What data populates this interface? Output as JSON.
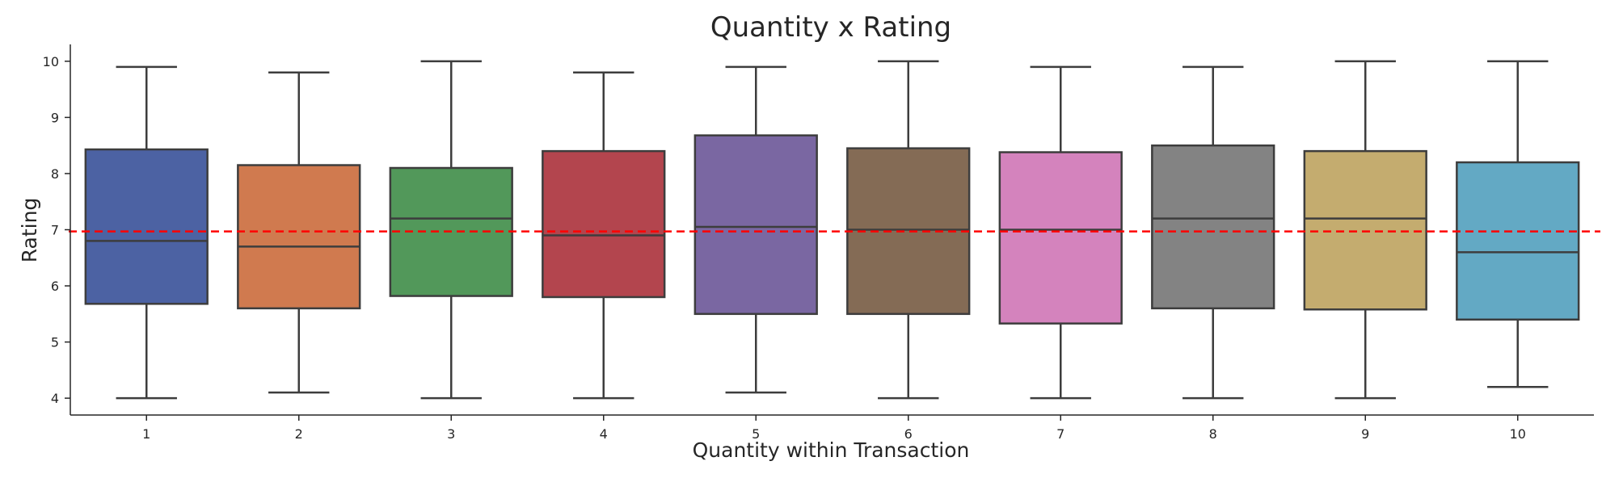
{
  "chart_data": {
    "type": "box",
    "title": "Quantity x Rating",
    "xlabel": "Quantity within Transaction",
    "ylabel": "Rating",
    "ylim": [
      3.7,
      10.3
    ],
    "yticks": [
      "4",
      "5",
      "6",
      "7",
      "8",
      "9",
      "10"
    ],
    "grid": false,
    "reference_line": {
      "y": 6.97,
      "color": "#ff0000",
      "style": "dashed"
    },
    "categories": [
      "1",
      "2",
      "3",
      "4",
      "5",
      "6",
      "7",
      "8",
      "9",
      "10"
    ],
    "boxes": [
      {
        "category": "1",
        "min": 4.0,
        "q1": 5.68,
        "median": 6.8,
        "q3": 8.43,
        "max": 9.9,
        "color": "#4c62a3"
      },
      {
        "category": "2",
        "min": 4.1,
        "q1": 5.6,
        "median": 6.7,
        "q3": 8.15,
        "max": 9.8,
        "color": "#d07a4f"
      },
      {
        "category": "3",
        "min": 4.0,
        "q1": 5.82,
        "median": 7.2,
        "q3": 8.1,
        "max": 10.0,
        "color": "#52985a"
      },
      {
        "category": "4",
        "min": 4.0,
        "q1": 5.8,
        "median": 6.9,
        "q3": 8.4,
        "max": 9.8,
        "color": "#b3454e"
      },
      {
        "category": "5",
        "min": 4.1,
        "q1": 5.5,
        "median": 7.05,
        "q3": 8.68,
        "max": 9.9,
        "color": "#7a67a2"
      },
      {
        "category": "6",
        "min": 4.0,
        "q1": 5.5,
        "median": 7.0,
        "q3": 8.45,
        "max": 10.0,
        "color": "#846b55"
      },
      {
        "category": "7",
        "min": 4.0,
        "q1": 5.33,
        "median": 7.0,
        "q3": 8.38,
        "max": 9.9,
        "color": "#d483bd"
      },
      {
        "category": "8",
        "min": 4.0,
        "q1": 5.6,
        "median": 7.2,
        "q3": 8.5,
        "max": 9.9,
        "color": "#838383"
      },
      {
        "category": "9",
        "min": 4.0,
        "q1": 5.58,
        "median": 7.2,
        "q3": 8.4,
        "max": 10.0,
        "color": "#c4ac6f"
      },
      {
        "category": "10",
        "min": 4.2,
        "q1": 5.4,
        "median": 6.6,
        "q3": 8.2,
        "max": 10.0,
        "color": "#63a9c4"
      }
    ]
  }
}
